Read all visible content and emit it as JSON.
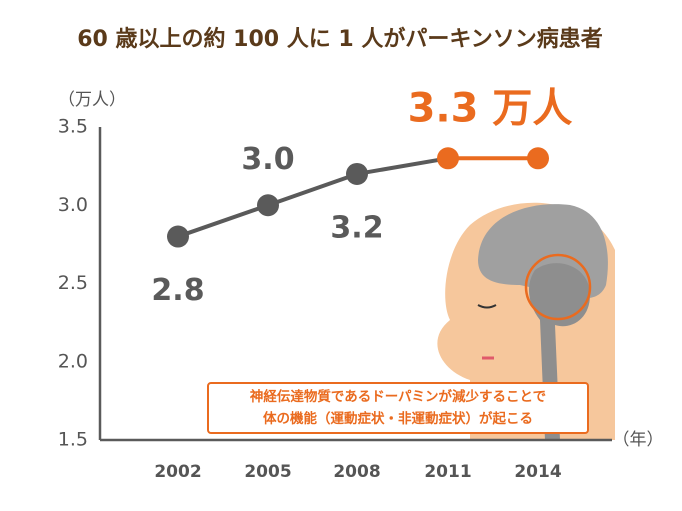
{
  "chart_data": {
    "type": "line",
    "title": "60 歳以上の約 100 人に 1 人がパーキンソン病患者",
    "y_label": "（万人）",
    "x_label": "（年）",
    "categories": [
      "2002",
      "2005",
      "2008",
      "2011",
      "2014"
    ],
    "series": [
      {
        "values": [
          2.8,
          3.0,
          3.2,
          3.3,
          3.3
        ],
        "value_labels": [
          "2.8",
          "3.0",
          "3.2",
          null,
          "3.3 万人"
        ],
        "color": "#5a5a5a",
        "point_colors": [
          "#5a5a5a",
          "#5a5a5a",
          "#5a5a5a",
          "#ea6b1f",
          "#ea6b1f"
        ]
      }
    ],
    "ylim": [
      1.5,
      3.5
    ],
    "yticks": [
      1.5,
      {
        "value": 2,
        "label": "2.0"
      },
      2.5,
      {
        "value": 3,
        "label": "3.0"
      },
      3.5
    ],
    "grid": false,
    "annotation": [
      "神経伝達物質であるドーパミンが減少することで",
      "体の機能（運動症状・非運動症状）が起こる"
    ]
  }
}
